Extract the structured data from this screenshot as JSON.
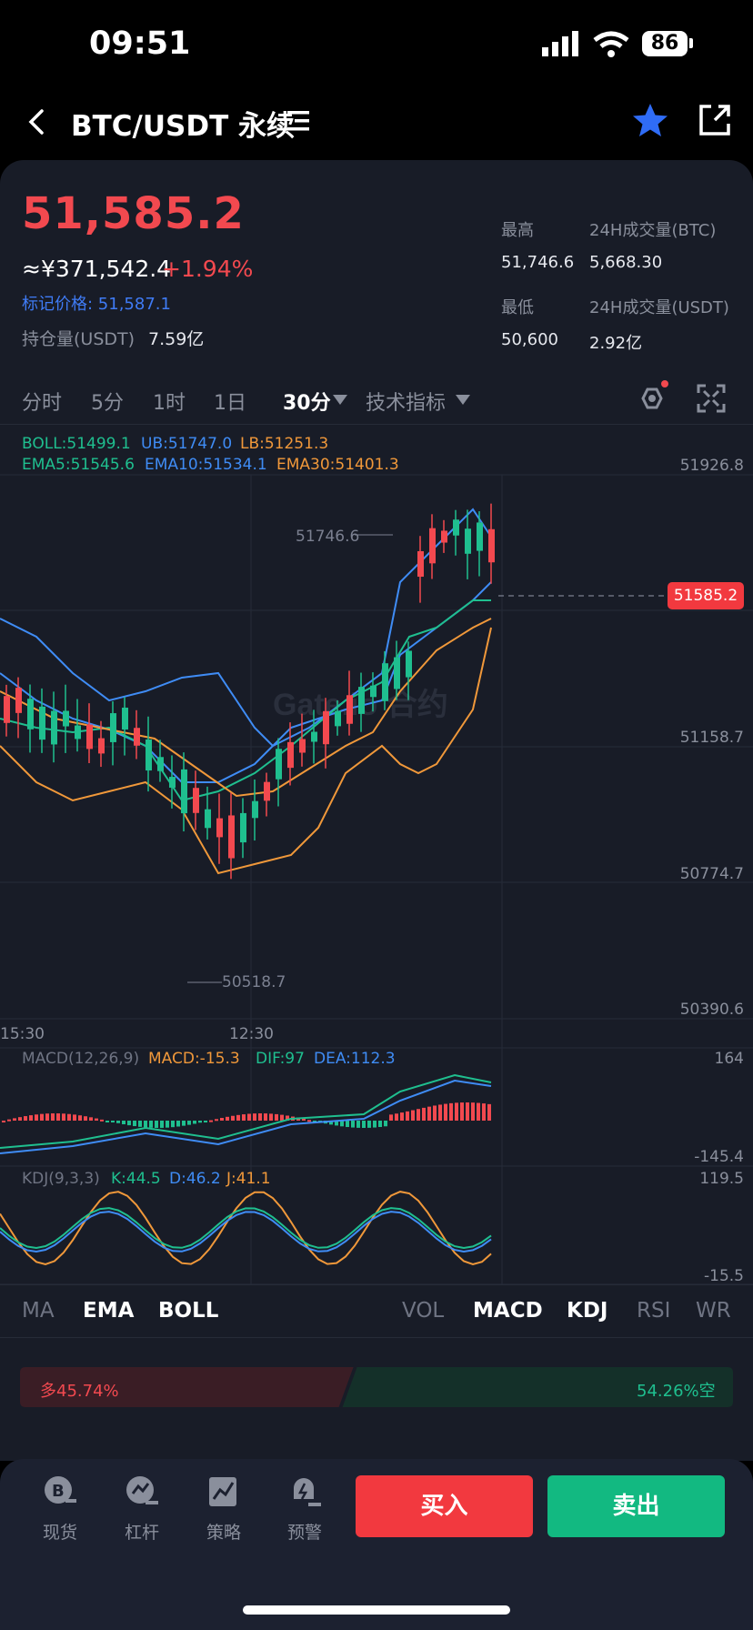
{
  "status_bar": {
    "time": "09:51",
    "battery": "86"
  },
  "header": {
    "pair": "BTC/USDT 永续",
    "menu_icon": "menu-icon",
    "star_icon": "star-icon",
    "share_icon": "share-icon"
  },
  "ticker": {
    "last_price": "51,585.2",
    "cny_price": "≈¥371,542.4",
    "change_pct": "+1.94%",
    "mark_price": "标记价格: 51,587.1",
    "oi_label": "持仓量(USDT)",
    "oi_value": "7.59亿",
    "high_label": "最高",
    "high_value": "51,746.6",
    "low_label": "最低",
    "low_value": "50,600",
    "vol_btc_label": "24H成交量(BTC)",
    "vol_btc_value": "5,668.30",
    "vol_usdt_label": "24H成交量(USDT)",
    "vol_usdt_value": "2.92亿"
  },
  "timeframes": [
    "分时",
    "5分",
    "1时",
    "1日",
    "30分",
    "技术指标"
  ],
  "colors": {
    "up": "#f2494f",
    "down": "#1fbf8f",
    "accent": "#3f7bf5",
    "boll": "#3f8cf5",
    "ema5": "#1fbf8f",
    "ema10": "#3f8cf5",
    "ema30": "#f0983a"
  },
  "indicators": {
    "boll": "BOLL:51499.1",
    "ub": "UB:51747.0",
    "lb": "LB:51251.3",
    "ema5": "EMA5:51545.6",
    "ema10": "EMA10:51534.1",
    "ema30": "EMA30:51401.3",
    "macd_title": "MACD(12,26,9)",
    "macd_val": "MACD:-15.3",
    "dif": "DIF:97",
    "dea": "DEA:112.3",
    "kdj_title": "KDJ(9,3,3)",
    "k": "K:44.5",
    "d": "D:46.2",
    "j": "J:41.1"
  },
  "chart_data": {
    "type": "candlestick",
    "y_axis_labels": [
      "51926.8",
      "51158.7",
      "50774.7",
      "50390.6"
    ],
    "x_axis_labels": [
      "15:30",
      "12:30"
    ],
    "ylim": [
      50390.6,
      51926.8
    ],
    "current_price_tag": "51585.2",
    "high_marker": "51746.6",
    "low_marker": "50518.7",
    "watermark": "Gate.io 合约",
    "macd_axis": [
      "164",
      "-145.4"
    ],
    "kdj_axis": [
      "119.5",
      "-15.5"
    ]
  },
  "bottom_tabs": {
    "main": [
      "MA",
      "EMA",
      "BOLL"
    ],
    "sub": [
      "VOL",
      "MACD",
      "KDJ",
      "RSI",
      "WR"
    ]
  },
  "long_short": {
    "long": "多45.74%",
    "short": "54.26%空",
    "long_ratio": 0.4574
  },
  "footer": {
    "items": [
      {
        "label": "现货",
        "icon": "spot-icon"
      },
      {
        "label": "杠杆",
        "icon": "margin-icon"
      },
      {
        "label": "策略",
        "icon": "strategy-icon"
      },
      {
        "label": "预警",
        "icon": "alert-icon"
      }
    ],
    "buy": "买入",
    "sell": "卖出"
  }
}
